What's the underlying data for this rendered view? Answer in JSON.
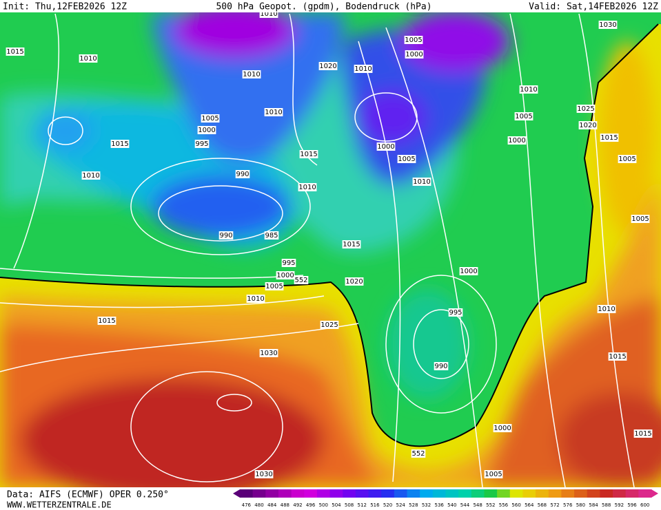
{
  "header": {
    "init": "Init: Thu,12FEB2026 12Z",
    "title": "500 hPa Geopot. (gpdm), Bodendruck (hPa)",
    "valid": "Valid: Sat,14FEB2026 12Z"
  },
  "footer": {
    "data_source": "Data: AIFS (ECMWF) OPER 0.250°",
    "website": "WWW.WETTERZENTRALE.DE"
  },
  "colorbar": {
    "labels": [
      476,
      480,
      484,
      488,
      492,
      496,
      500,
      504,
      508,
      512,
      516,
      520,
      524,
      528,
      532,
      536,
      540,
      544,
      548,
      552,
      556,
      560,
      564,
      568,
      572,
      576,
      580,
      584,
      588,
      592,
      596,
      600
    ]
  },
  "isobar_labels": [
    1010,
    1015,
    1010,
    1010,
    1020,
    1010,
    1005,
    1000,
    1030,
    1010,
    1005,
    1025,
    1020,
    1015,
    1000,
    1005,
    1005,
    1000,
    995,
    1010,
    1015,
    1015,
    1000,
    1005,
    1010,
    1010,
    990,
    1010,
    990,
    985,
    1015,
    1005,
    995,
    1000,
    552,
    1005,
    1020,
    1000,
    1010,
    1010,
    995,
    1015,
    1025,
    990,
    1015,
    1030,
    1000,
    1015,
    552,
    1005,
    1030
  ]
}
